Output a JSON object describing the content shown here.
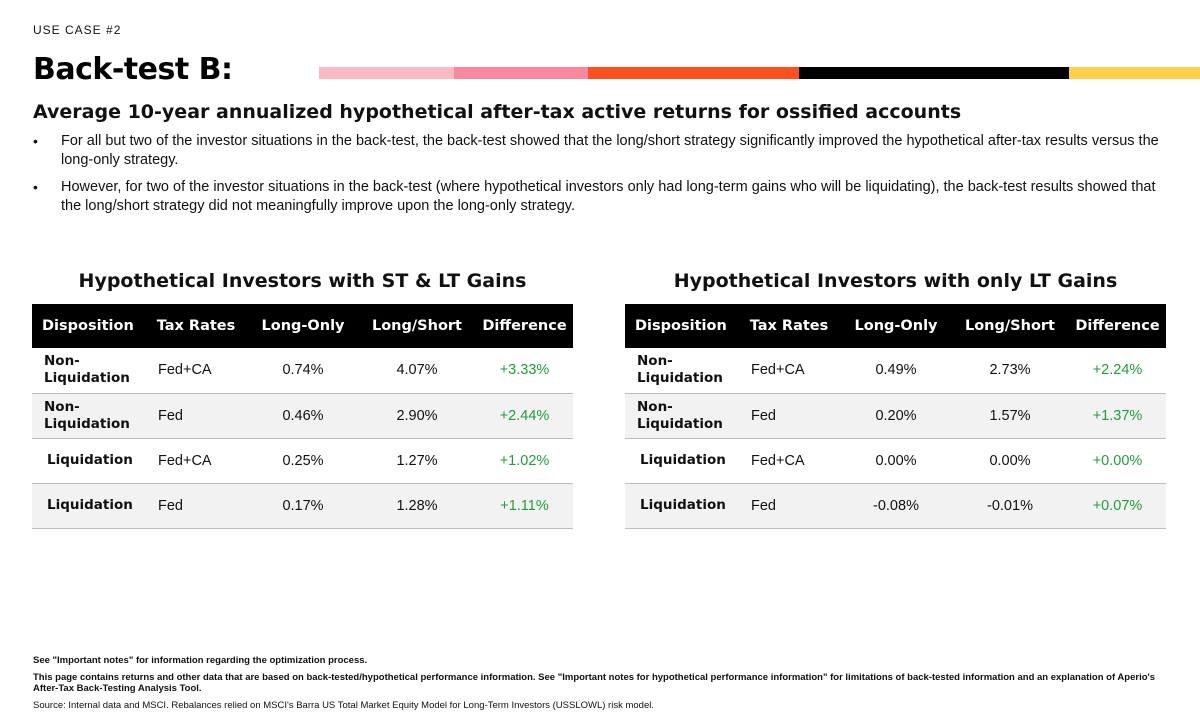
{
  "header": {
    "eyebrow": "USE CASE #2",
    "title": "Back-test B:"
  },
  "stripe_colors": [
    "#fbb9c6",
    "#f8889f",
    "#fd501f",
    "#000000",
    "#fcd04b"
  ],
  "subtitle": "Average 10-year annualized hypothetical after-tax active returns for ossified accounts",
  "bullets": [
    "For all but two of the investor situations in the back-test, the back-test showed that the long/short strategy significantly improved the hypothetical after-tax results versus the long-only strategy.",
    "However, for two of the investor situations in the back-test (where hypothetical investors only had long-term gains who will be liquidating), the back-test results showed that the long/short strategy did not meaningfully improve upon the long-only strategy."
  ],
  "bullet_symbol": "•",
  "columns": [
    "Disposition",
    "Tax Rates",
    "Long-Only",
    "Long/Short",
    "Difference"
  ],
  "tables": [
    {
      "title": "Hypothetical Investors with ST & LT Gains",
      "rows": [
        {
          "disposition_a": "Non-",
          "disposition_b": "Liquidation",
          "tax": "Fed+CA",
          "long_only": "0.74%",
          "long_short": "4.07%",
          "difference": "+3.33%"
        },
        {
          "disposition_a": "Non-",
          "disposition_b": "Liquidation",
          "tax": "Fed",
          "long_only": "0.46%",
          "long_short": "2.90%",
          "difference": "+2.44%"
        },
        {
          "disposition_a": "Liquidation",
          "disposition_b": "",
          "tax": "Fed+CA",
          "long_only": "0.25%",
          "long_short": "1.27%",
          "difference": "+1.02%"
        },
        {
          "disposition_a": "Liquidation",
          "disposition_b": "",
          "tax": "Fed",
          "long_only": "0.17%",
          "long_short": "1.28%",
          "difference": "+1.11%"
        }
      ]
    },
    {
      "title": "Hypothetical Investors with only LT Gains",
      "rows": [
        {
          "disposition_a": "Non-",
          "disposition_b": "Liquidation",
          "tax": "Fed+CA",
          "long_only": "0.49%",
          "long_short": "2.73%",
          "difference": "+2.24%"
        },
        {
          "disposition_a": "Non-",
          "disposition_b": "Liquidation",
          "tax": "Fed",
          "long_only": "0.20%",
          "long_short": "1.57%",
          "difference": "+1.37%"
        },
        {
          "disposition_a": "Liquidation",
          "disposition_b": "",
          "tax": "Fed+CA",
          "long_only": "0.00%",
          "long_short": "0.00%",
          "difference": "+0.00%"
        },
        {
          "disposition_a": "Liquidation",
          "disposition_b": "",
          "tax": "Fed",
          "long_only": "-0.08%",
          "long_short": "-0.01%",
          "difference": "+0.07%"
        }
      ]
    }
  ],
  "notes": {
    "important": "See \"Important notes\" for information regarding the optimization process.",
    "hypothetical": "This page contains returns and other data that are based on back-tested/hypothetical performance information. See \"Important notes for hypothetical performance information\" for limitations of back-tested information and an explanation of Aperio's After-Tax Back-Testing Analysis Tool.",
    "source": "Source: Internal data and MSCI. Rebalances relied on MSCI's Barra US Total Market Equity Model for Long-Term Investors (USSLOWL) risk model."
  }
}
